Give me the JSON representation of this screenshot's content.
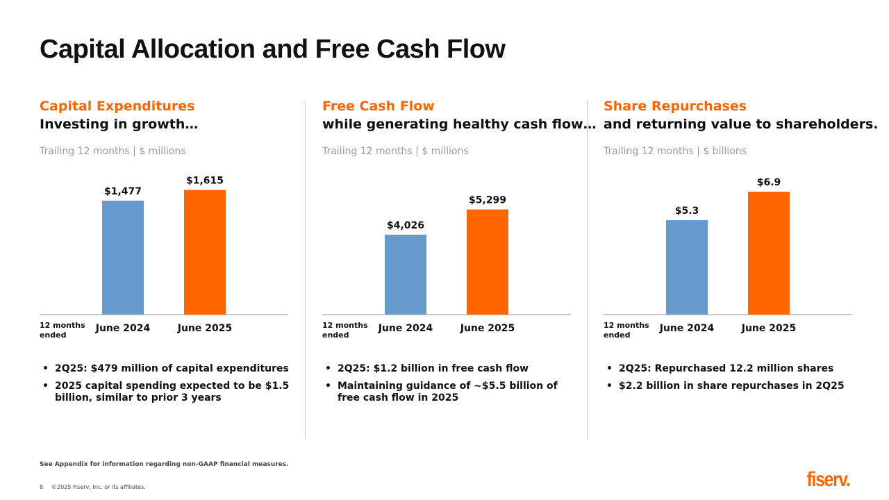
{
  "page": {
    "title": "Capital Allocation and Free Cash Flow",
    "footnote": "See Appendix for information regarding non-GAAP financial measures.",
    "page_number": "8",
    "copyright": "©2025 Fiserv, Inc. or its affiliates.",
    "logo_text": "fiserv."
  },
  "colors": {
    "prior": "#6699cc",
    "current": "#ff6600",
    "accent": "#ff6600"
  },
  "panels": [
    {
      "title": "Capital Expenditures",
      "subtitle": "Investing in growth…",
      "unit_note": "Trailing 12 months | $ millions",
      "axis_note": "12 months ended",
      "bullets": [
        "2Q25: $479 million of capital expenditures",
        "2025 capital spending expected to be $1.5 billion, similar to prior 3 years"
      ]
    },
    {
      "title": "Free Cash Flow",
      "subtitle": "while generating healthy cash flow…",
      "unit_note": "Trailing 12 months | $ millions",
      "axis_note": "12 months ended",
      "bullets": [
        "2Q25: $1.2 billion in free cash flow",
        "Maintaining guidance of ~$5.5 billion of free cash flow in 2025"
      ]
    },
    {
      "title": "Share Repurchases",
      "subtitle": "and returning value to shareholders.",
      "unit_note": "Trailing 12 months | $ billions",
      "axis_note": "12 months ended",
      "bullets": [
        "2Q25: Repurchased 12.2 million shares",
        "$2.2 billion in share repurchases in 2Q25"
      ]
    }
  ],
  "chart_data": [
    {
      "type": "bar",
      "categories": [
        "June 2024",
        "June 2025"
      ],
      "values": [
        1477,
        1615
      ],
      "value_labels": [
        "$1,477",
        "$1,615"
      ],
      "ylim": [
        0,
        1800
      ]
    },
    {
      "type": "bar",
      "categories": [
        "June 2024",
        "June 2025"
      ],
      "values": [
        4026,
        5299
      ],
      "value_labels": [
        "$4,026",
        "$5,299"
      ],
      "ylim": [
        0,
        7000
      ]
    },
    {
      "type": "bar",
      "categories": [
        "June 2024",
        "June 2025"
      ],
      "values": [
        5.3,
        6.9
      ],
      "value_labels": [
        "$5.3",
        "$6.9"
      ],
      "ylim": [
        0,
        7.8
      ]
    }
  ]
}
